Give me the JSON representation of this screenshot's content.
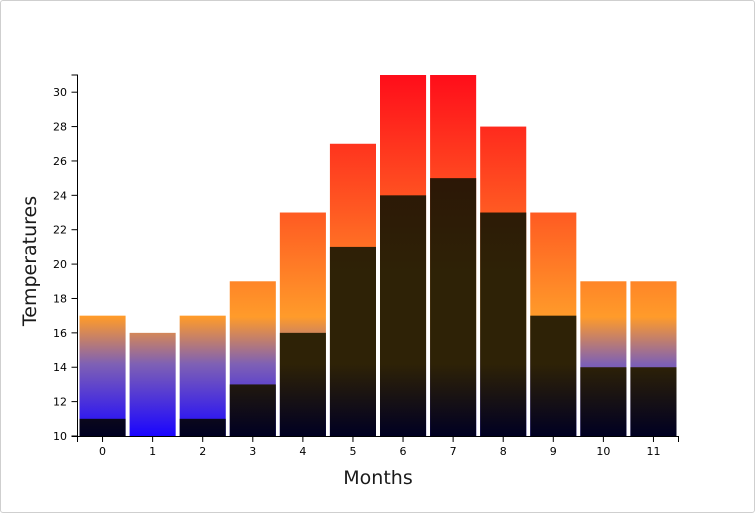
{
  "chart_data": {
    "type": "bar",
    "categories": [
      "0",
      "1",
      "2",
      "3",
      "4",
      "5",
      "6",
      "7",
      "8",
      "9",
      "10",
      "11"
    ],
    "series": [
      {
        "values": [
          17,
          16,
          17,
          19,
          23,
          27,
          31,
          31,
          28,
          23,
          19,
          19
        ]
      },
      {
        "values": [
          11,
          10,
          11,
          13,
          16,
          21,
          24,
          25,
          23,
          17,
          14,
          14
        ]
      }
    ],
    "title": "",
    "xlabel": "Months",
    "ylabel": "Temperatures",
    "ylim": [
      10,
      31
    ],
    "yticks": [
      "10",
      "12",
      "14",
      "16",
      "18",
      "20",
      "22",
      "24",
      "26",
      "28",
      "30"
    ],
    "grid": false,
    "colors": {
      "high_top": "#ff0d1a",
      "high_mid": "#ff5a22",
      "high_low": "#ff9b2a",
      "cold_mid": "#7f61b4",
      "cold_bottom": "#1a05ff",
      "dark_top": "#2a0b05",
      "dark_mid": "#2e2206",
      "dark_bottom": "#000022"
    }
  }
}
